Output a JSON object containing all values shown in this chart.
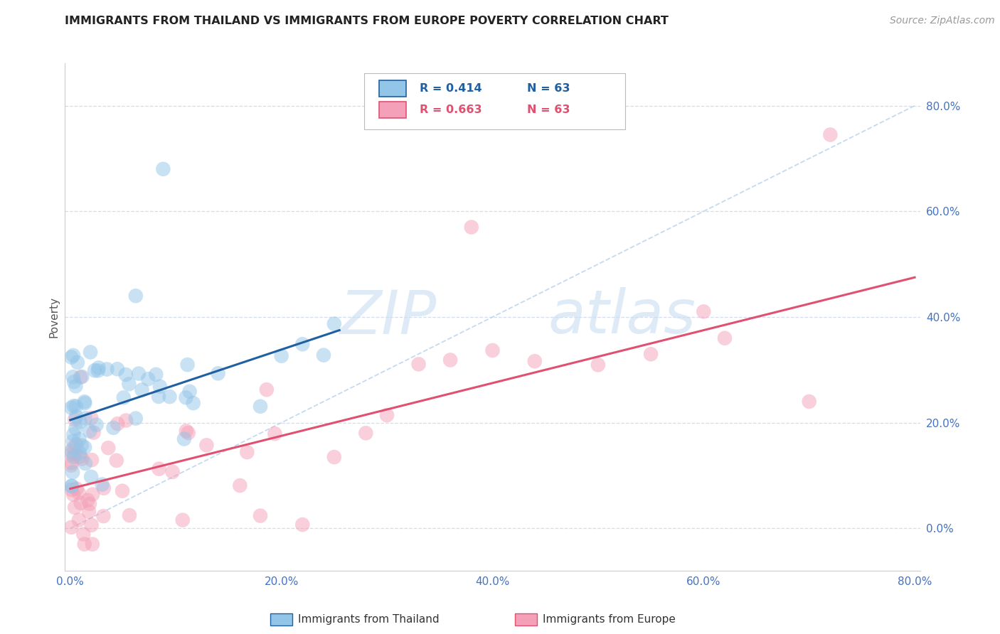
{
  "title": "IMMIGRANTS FROM THAILAND VS IMMIGRANTS FROM EUROPE POVERTY CORRELATION CHART",
  "source": "Source: ZipAtlas.com",
  "ylabel": "Poverty",
  "legend_label_blue": "Immigrants from Thailand",
  "legend_label_pink": "Immigrants from Europe",
  "color_blue": "#92C5E8",
  "color_pink": "#F4A0B8",
  "color_blue_line": "#2060A0",
  "color_pink_line": "#E05070",
  "color_dashed": "#B8D4F0",
  "watermark_zip": "ZIP",
  "watermark_atlas": "atlas",
  "background_color": "#FFFFFF",
  "grid_color": "#D0D8E8",
  "title_color": "#222222",
  "source_color": "#999999",
  "axis_label_color": "#4472C4",
  "xlim": [
    -0.005,
    0.805
  ],
  "ylim": [
    -0.08,
    0.88
  ],
  "x_ticks": [
    0.0,
    0.2,
    0.4,
    0.6,
    0.8
  ],
  "x_tick_labels": [
    "0.0%",
    "20.0%",
    "40.0%",
    "60.0%",
    "80.0%"
  ],
  "y_ticks": [
    0.0,
    0.2,
    0.4,
    0.6,
    0.8
  ],
  "y_tick_labels": [
    "0.0%",
    "20.0%",
    "40.0%",
    "60.0%",
    "80.0%"
  ],
  "blue_line_x": [
    0.0,
    0.255
  ],
  "blue_line_y": [
    0.205,
    0.375
  ],
  "pink_line_x": [
    0.0,
    0.8
  ],
  "pink_line_y": [
    0.075,
    0.475
  ],
  "diag_line_x": [
    0.0,
    0.8
  ],
  "diag_line_y": [
    0.0,
    0.8
  ]
}
